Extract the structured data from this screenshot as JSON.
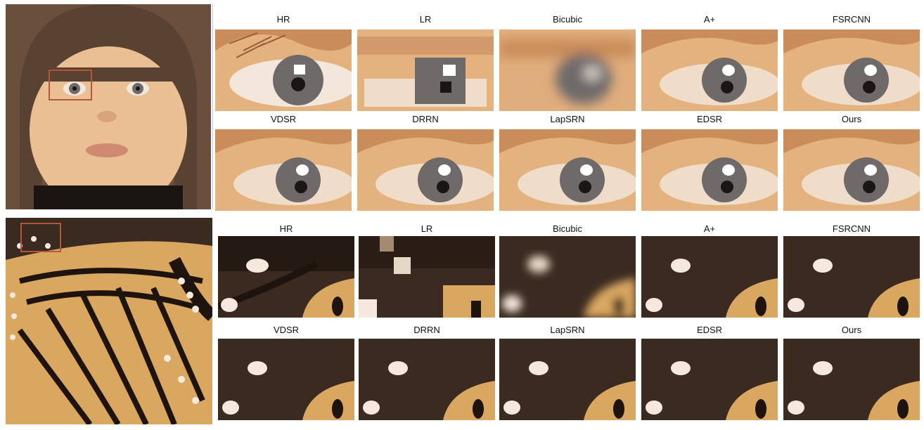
{
  "figure": {
    "examples": [
      {
        "id": "baby",
        "colors": {
          "skin": "#e9bf93",
          "hat": "#5a4232",
          "iris": "#6e6a6a",
          "pupil": "#1b1516",
          "box": "#b5553a"
        },
        "methods": [
          "HR",
          "LR",
          "Bicubic",
          "A+",
          "FSRCNN",
          "VDSR",
          "DRRN",
          "LapSRN",
          "EDSR",
          "Ours"
        ]
      },
      {
        "id": "butterfly",
        "colors": {
          "wing": "#d9a760",
          "vein": "#1e130d",
          "spot": "#f4e9dc",
          "bg": "#3a2a20",
          "box": "#b5553a"
        },
        "methods": [
          "HR",
          "LR",
          "Bicubic",
          "A+",
          "FSRCNN",
          "VDSR",
          "DRRN",
          "LapSRN",
          "EDSR",
          "Ours"
        ]
      }
    ]
  }
}
